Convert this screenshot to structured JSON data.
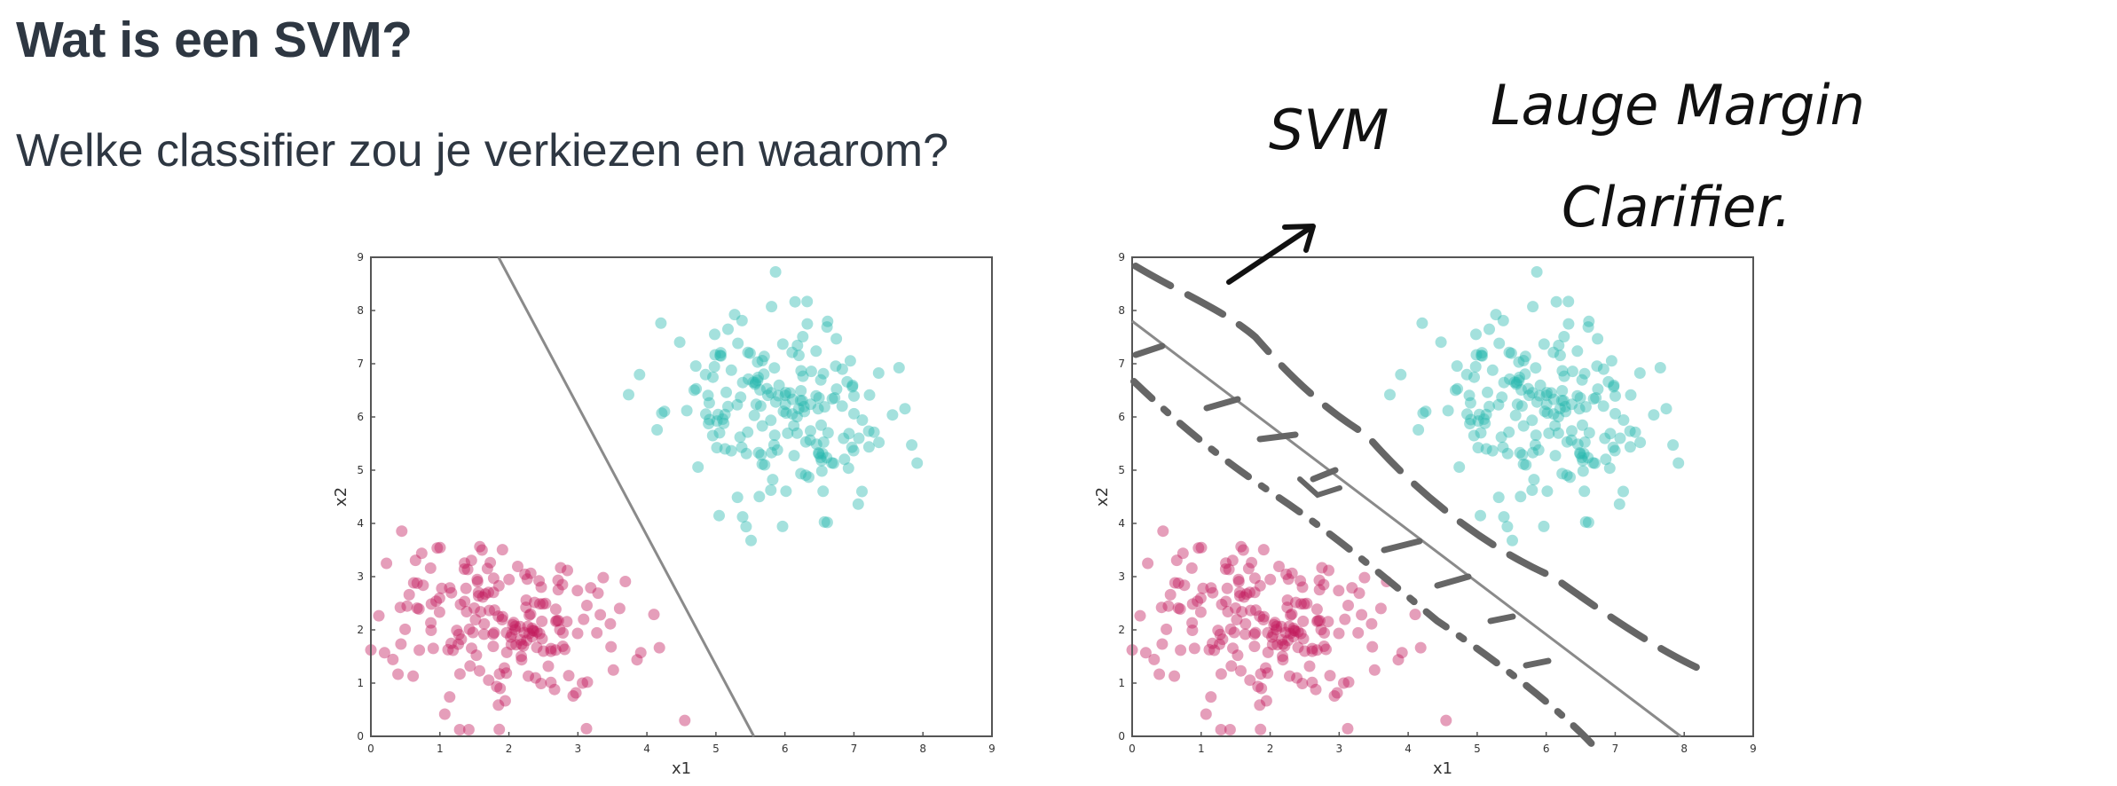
{
  "slide": {
    "title": "Wat is een SVM?",
    "question": "Welke classifier zou je verkiezen en waarom?"
  },
  "annotations": {
    "svm_label": "SVM",
    "large_margin_line1": "Lauge Margin",
    "large_margin_line2": "Clarifier."
  },
  "colors": {
    "class_a": "#c2185b",
    "class_b": "#26b8ae",
    "boundary": "#8a8a8a",
    "ink": "#666666"
  },
  "chart_data": [
    {
      "type": "scatter",
      "xlabel": "x1",
      "ylabel": "x2",
      "xlim": [
        0,
        9
      ],
      "ylim": [
        0,
        9
      ],
      "ticks": [
        0,
        1,
        2,
        3,
        4,
        5,
        6,
        7,
        8,
        9
      ],
      "clusters": [
        {
          "name": "",
          "color": "#c2185b",
          "center": [
            1.9,
            2.1
          ],
          "spread": [
            0.85,
            0.75
          ],
          "count": 190,
          "seed": 7
        },
        {
          "name": "",
          "color": "#26b8ae",
          "center": [
            5.9,
            6.1
          ],
          "spread": [
            0.8,
            0.85
          ],
          "count": 190,
          "seed": 23
        }
      ],
      "decision_boundary": {
        "x0": 1.85,
        "y0": 9.0,
        "x1": 5.55,
        "y1": 0.0
      }
    },
    {
      "type": "scatter",
      "xlabel": "x1",
      "ylabel": "x2",
      "xlim": [
        0,
        9
      ],
      "ylim": [
        0,
        9
      ],
      "ticks": [
        0,
        1,
        2,
        3,
        4,
        5,
        6,
        7,
        8,
        9
      ],
      "clusters": [
        {
          "name": "",
          "color": "#c2185b",
          "center": [
            1.9,
            2.1
          ],
          "spread": [
            0.85,
            0.75
          ],
          "count": 190,
          "seed": 7
        },
        {
          "name": "",
          "color": "#26b8ae",
          "center": [
            5.9,
            6.1
          ],
          "spread": [
            0.8,
            0.85
          ],
          "count": 190,
          "seed": 23
        }
      ],
      "decision_boundary": {
        "x0": 0.0,
        "y0": 7.8,
        "x1": 7.95,
        "y1": 0.0
      }
    }
  ]
}
